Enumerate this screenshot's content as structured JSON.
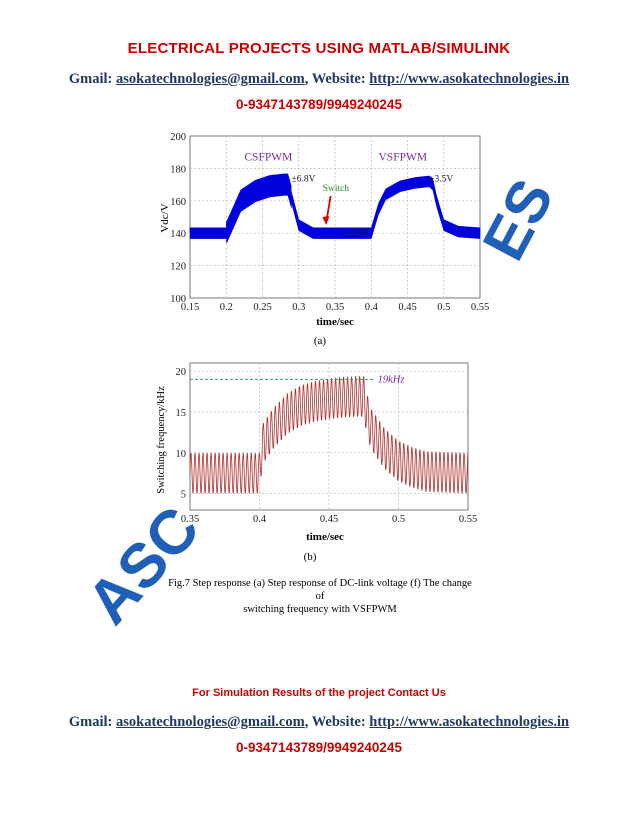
{
  "header": {
    "title": "ELECTRICAL PROJECTS USING MATLAB/SIMULINK",
    "gmail_label": "Gmail: ",
    "email": "asokatechnologies@gmail.com",
    "website_label": ", Website: ",
    "website": "http://www.asokatechnologies.in",
    "phone": "0-9347143789/9949240245"
  },
  "watermark": {
    "left_text": "ASC",
    "right_text": "ES",
    "color": "#1f5fb8"
  },
  "figure": {
    "caption_line1": "Fig.7 Step response (a) Step response of DC-link voltage (f) The change of",
    "caption_line2": "switching frequency with  VSFPWM"
  },
  "chart_data": [
    {
      "type": "line",
      "panel_label": "(a)",
      "xlabel": "time/sec",
      "ylabel": "Vdc/V",
      "xlim": [
        0.15,
        0.55
      ],
      "ylim": [
        100,
        200
      ],
      "xticks": [
        "0.15",
        "0.2",
        "0.25",
        "0.3",
        "0.35",
        "0.4",
        "0.45",
        "0.5",
        "0.55"
      ],
      "yticks": [
        "100",
        "120",
        "140",
        "160",
        "180",
        "200"
      ],
      "grid": true,
      "series_color": "#0000dd",
      "series": [
        {
          "x": [
            0.15,
            0.2,
            0.21,
            0.22,
            0.24,
            0.26,
            0.28,
            0.285,
            0.29,
            0.3,
            0.32,
            0.35,
            0.38,
            0.4,
            0.41,
            0.42,
            0.44,
            0.46,
            0.48,
            0.485,
            0.49,
            0.5,
            0.52,
            0.55
          ],
          "y": [
            140,
            140,
            150,
            160,
            166,
            169,
            170,
            170,
            162,
            145,
            140,
            140,
            140,
            140,
            155,
            164,
            169,
            171,
            172,
            170,
            160,
            145,
            141,
            140
          ]
        }
      ],
      "ripple": [
        {
          "x_from": 0.15,
          "x_to": 0.2,
          "amplitude": 3.5
        },
        {
          "x_from": 0.2,
          "x_to": 0.29,
          "amplitude": 6.8
        },
        {
          "x_from": 0.29,
          "x_to": 0.4,
          "amplitude": 3.5
        },
        {
          "x_from": 0.4,
          "x_to": 0.55,
          "amplitude": 3.5
        }
      ],
      "annotations": [
        {
          "text": "CSFPWM",
          "x": 0.225,
          "y": 185
        },
        {
          "text": "VSFPWM",
          "x": 0.41,
          "y": 185
        },
        {
          "text": "Switch",
          "x": 0.333,
          "y": 166
        },
        {
          "text": "±6.8V",
          "x": 0.29,
          "y": 172
        },
        {
          "text": "±3.5V",
          "x": 0.48,
          "y": 172
        },
        {
          "text": "±3.5V",
          "x": 0.365,
          "y": 139
        }
      ]
    },
    {
      "type": "line",
      "panel_label": "(b)",
      "xlabel": "time/sec",
      "ylabel": "Switching frequency/kHz",
      "xlim": [
        0.35,
        0.55
      ],
      "ylim": [
        3,
        21
      ],
      "xticks": [
        "0.35",
        "0.4",
        "0.45",
        "0.5",
        "0.55"
      ],
      "yticks": [
        "5",
        "10",
        "15",
        "20"
      ],
      "grid": true,
      "series_color": "#b03030",
      "reference_line": {
        "y": 19,
        "label": "19kHz",
        "color": "#30a060"
      },
      "series": [
        {
          "x": [
            0.35,
            0.4,
            0.402,
            0.41,
            0.42,
            0.43,
            0.44,
            0.45,
            0.46,
            0.47,
            0.475,
            0.477,
            0.48,
            0.49,
            0.5,
            0.51,
            0.52,
            0.55
          ],
          "y": [
            7.5,
            7.5,
            11,
            13,
            14.8,
            15.8,
            16.3,
            16.6,
            16.8,
            16.9,
            16.9,
            15,
            13,
            10.5,
            9,
            8.2,
            7.7,
            7.5
          ]
        }
      ],
      "ripple_amplitude": 2.5,
      "annotations": [
        {
          "text": "19kHz",
          "x": 0.485,
          "y": 19
        }
      ]
    }
  ],
  "footer": {
    "contact": "For Simulation Results of the project Contact Us",
    "gmail_label": "Gmail: ",
    "email": "asokatechnologies@gmail.com",
    "website_label": ", Website: ",
    "website": "http://www.asokatechnologies.in",
    "phone": "0-9347143789/9949240245"
  }
}
